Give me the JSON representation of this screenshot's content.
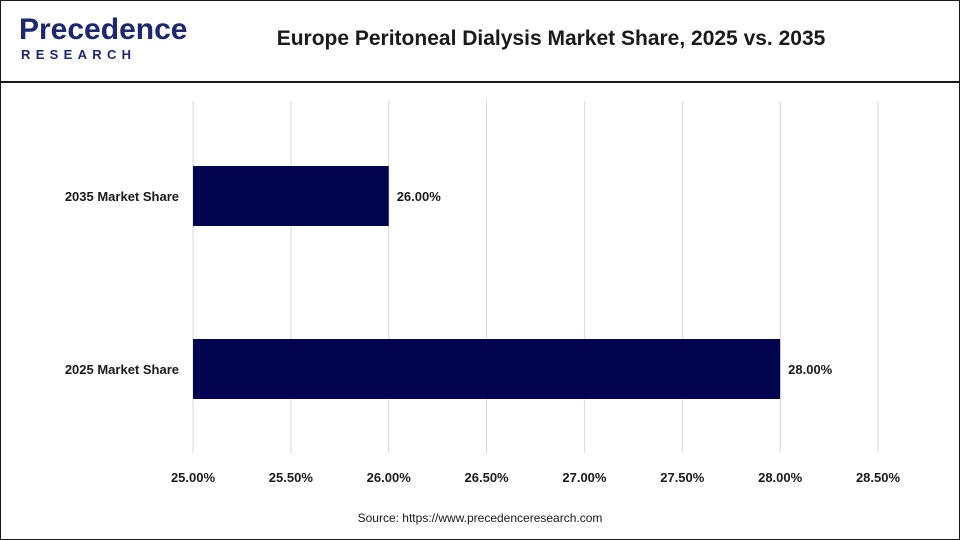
{
  "header": {
    "logo_main": "Precedence",
    "logo_sub": "RESEARCH",
    "title": "Europe Peritoneal Dialysis Market Share, 2025 vs. 2035"
  },
  "footer": {
    "source": "Source: https://www.precedenceresearch.com"
  },
  "colors": {
    "bar": "#03044f",
    "grid": "#d9d9d9",
    "text": "#1a1a1a",
    "brand": "#1d2671"
  },
  "chart_data": {
    "type": "bar",
    "orientation": "horizontal",
    "title": "Europe Peritoneal Dialysis Market Share, 2025 vs. 2035",
    "categories": [
      "2035 Market Share",
      "2025 Market Share"
    ],
    "values": [
      26.0,
      28.0
    ],
    "data_labels": [
      "26.00%",
      "28.00%"
    ],
    "xlim": [
      25.0,
      28.5
    ],
    "xticks": [
      25.0,
      25.5,
      26.0,
      26.5,
      27.0,
      27.5,
      28.0,
      28.5
    ],
    "xtick_labels": [
      "25.00%",
      "25.50%",
      "26.00%",
      "26.50%",
      "27.00%",
      "27.50%",
      "28.00%",
      "28.50%"
    ],
    "xlabel": "",
    "ylabel": "",
    "grid": "vertical",
    "legend": "none"
  }
}
